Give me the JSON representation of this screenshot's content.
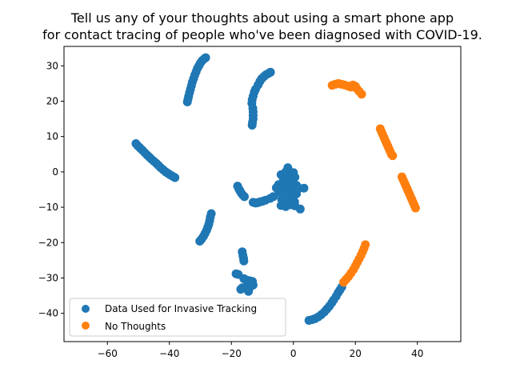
{
  "chart_data": {
    "type": "scatter",
    "title_lines": [
      "Tell us any of your thoughts about using a smart phone app",
      "for contact tracing of people who've been diagnosed with COVID-19."
    ],
    "xlabel": "",
    "ylabel": "",
    "xlim": [
      -74,
      54
    ],
    "ylim": [
      -48,
      35.5
    ],
    "x_ticks": [
      -60,
      -40,
      -20,
      0,
      20,
      40
    ],
    "y_ticks": [
      -40,
      -30,
      -20,
      -10,
      0,
      10,
      20,
      30
    ],
    "grid": false,
    "legend_position": "lower-left",
    "series": [
      {
        "name": "Data Used for Invasive Tracking",
        "color": "#1f77b4",
        "points": [
          [
            -34.2,
            19.8
          ],
          [
            -34.0,
            20.6
          ],
          [
            -33.8,
            21.4
          ],
          [
            -33.5,
            22.4
          ],
          [
            -33.2,
            23.4
          ],
          [
            -32.9,
            24.4
          ],
          [
            -32.6,
            25.4
          ],
          [
            -32.2,
            26.4
          ],
          [
            -31.8,
            27.4
          ],
          [
            -31.4,
            28.3
          ],
          [
            -31.0,
            29.2
          ],
          [
            -30.5,
            30.0
          ],
          [
            -30.0,
            30.8
          ],
          [
            -29.4,
            31.5
          ],
          [
            -28.8,
            32.0
          ],
          [
            -28.3,
            32.3
          ],
          [
            -13.3,
            13.2
          ],
          [
            -13.2,
            14.0
          ],
          [
            -13.0,
            15.0
          ],
          [
            -13.0,
            16.0
          ],
          [
            -13.0,
            17.0
          ],
          [
            -13.1,
            18.0
          ],
          [
            -13.4,
            19.4
          ],
          [
            -13.3,
            20.4
          ],
          [
            -13.0,
            21.4
          ],
          [
            -12.6,
            22.6
          ],
          [
            -12.2,
            23.4
          ],
          [
            -11.4,
            24.6
          ],
          [
            -10.8,
            25.6
          ],
          [
            -10.2,
            26.4
          ],
          [
            -9.5,
            27.0
          ],
          [
            -8.8,
            27.5
          ],
          [
            -8.0,
            27.9
          ],
          [
            -7.4,
            28.2
          ],
          [
            -50.8,
            8.0
          ],
          [
            -50.2,
            7.4
          ],
          [
            -49.5,
            6.8
          ],
          [
            -48.8,
            6.2
          ],
          [
            -48.0,
            5.5
          ],
          [
            -47.2,
            4.8
          ],
          [
            -46.5,
            4.2
          ],
          [
            -45.8,
            3.6
          ],
          [
            -45.0,
            3.0
          ],
          [
            -44.2,
            2.4
          ],
          [
            -43.5,
            1.8
          ],
          [
            -42.8,
            1.2
          ],
          [
            -42.0,
            0.6
          ],
          [
            -41.2,
            0.0
          ],
          [
            -40.5,
            -0.4
          ],
          [
            -39.8,
            -0.8
          ],
          [
            -39.0,
            -1.2
          ],
          [
            -38.2,
            -1.6
          ],
          [
            -18.0,
            -4.0
          ],
          [
            -17.6,
            -4.8
          ],
          [
            -17.2,
            -5.4
          ],
          [
            -16.8,
            -6.0
          ],
          [
            -16.3,
            -6.6
          ],
          [
            -15.8,
            -7.0
          ],
          [
            -13.0,
            -8.6
          ],
          [
            -12.2,
            -8.8
          ],
          [
            -11.5,
            -8.7
          ],
          [
            -10.8,
            -8.5
          ],
          [
            -10.0,
            -8.3
          ],
          [
            -9.0,
            -8.0
          ],
          [
            -7.5,
            -7.5
          ],
          [
            -6.5,
            -7.0
          ],
          [
            -4.0,
            -0.8
          ],
          [
            -2.5,
            0.0
          ],
          [
            -1.8,
            1.2
          ],
          [
            -1.0,
            -1.0
          ],
          [
            0.0,
            -0.2
          ],
          [
            0.5,
            -1.5
          ],
          [
            -3.2,
            -2.2
          ],
          [
            -4.8,
            -3.6
          ],
          [
            -5.5,
            -4.5
          ],
          [
            -3.5,
            -4.0
          ],
          [
            -2.0,
            -3.5
          ],
          [
            -0.5,
            -3.0
          ],
          [
            1.0,
            -3.8
          ],
          [
            1.8,
            -4.6
          ],
          [
            3.4,
            -4.6
          ],
          [
            -3.0,
            -5.2
          ],
          [
            -1.5,
            -5.5
          ],
          [
            0.5,
            -5.8
          ],
          [
            -4.5,
            -5.8
          ],
          [
            -2.0,
            -6.8
          ],
          [
            -0.2,
            -6.5
          ],
          [
            1.0,
            -6.2
          ],
          [
            -3.8,
            -7.8
          ],
          [
            -2.5,
            -8.5
          ],
          [
            -1.0,
            -8.0
          ],
          [
            0.4,
            -8.5
          ],
          [
            -4.0,
            -9.5
          ],
          [
            -2.5,
            -9.8
          ],
          [
            -1.0,
            -9.3
          ],
          [
            0.5,
            -9.6
          ],
          [
            2.2,
            -10.5
          ],
          [
            -2.8,
            -3.0
          ],
          [
            -1.2,
            -2.0
          ],
          [
            0.0,
            -4.5
          ],
          [
            -26.5,
            -11.8
          ],
          [
            -26.8,
            -12.8
          ],
          [
            -27.0,
            -13.8
          ],
          [
            -27.3,
            -14.8
          ],
          [
            -27.6,
            -15.6
          ],
          [
            -28.0,
            -16.5
          ],
          [
            -28.5,
            -17.4
          ],
          [
            -29.0,
            -18.2
          ],
          [
            -29.6,
            -19.0
          ],
          [
            -30.2,
            -19.6
          ],
          [
            -16.5,
            -22.6
          ],
          [
            -16.3,
            -23.6
          ],
          [
            -16.1,
            -24.4
          ],
          [
            -16.0,
            -25.2
          ],
          [
            -18.5,
            -28.8
          ],
          [
            -17.8,
            -29.0
          ],
          [
            -16.0,
            -30.2
          ],
          [
            -15.0,
            -30.6
          ],
          [
            -14.0,
            -30.8
          ],
          [
            -13.2,
            -31.0
          ],
          [
            -13.0,
            -32.0
          ],
          [
            -13.8,
            -32.4
          ],
          [
            -14.8,
            -31.8
          ],
          [
            -17.0,
            -33.2
          ],
          [
            -16.5,
            -32.8
          ],
          [
            -14.5,
            -33.8
          ],
          [
            5.0,
            -42.0
          ],
          [
            6.0,
            -41.8
          ],
          [
            7.0,
            -41.5
          ],
          [
            8.0,
            -41.0
          ],
          [
            9.0,
            -40.4
          ],
          [
            10.0,
            -39.6
          ],
          [
            10.8,
            -38.8
          ],
          [
            11.6,
            -38.0
          ],
          [
            12.4,
            -37.0
          ],
          [
            13.0,
            -36.2
          ],
          [
            13.8,
            -35.2
          ],
          [
            14.4,
            -34.2
          ],
          [
            15.0,
            -33.4
          ],
          [
            15.6,
            -32.6
          ]
        ]
      },
      {
        "name": "No Thoughts",
        "color": "#ff7f0e",
        "points": [
          [
            12.5,
            24.5
          ],
          [
            13.5,
            24.8
          ],
          [
            14.5,
            25.0
          ],
          [
            15.5,
            24.8
          ],
          [
            16.5,
            24.6
          ],
          [
            17.5,
            24.3
          ],
          [
            18.5,
            24.0
          ],
          [
            19.2,
            24.6
          ],
          [
            20.0,
            24.2
          ],
          [
            20.5,
            23.5
          ],
          [
            21.2,
            22.8
          ],
          [
            22.0,
            22.0
          ],
          [
            28.0,
            12.2
          ],
          [
            28.4,
            11.4
          ],
          [
            28.8,
            10.6
          ],
          [
            29.2,
            9.8
          ],
          [
            29.6,
            9.0
          ],
          [
            30.0,
            8.2
          ],
          [
            30.4,
            7.4
          ],
          [
            30.8,
            6.6
          ],
          [
            31.2,
            5.8
          ],
          [
            31.6,
            5.0
          ],
          [
            32.0,
            4.6
          ],
          [
            35.0,
            -1.4
          ],
          [
            35.4,
            -2.2
          ],
          [
            35.8,
            -3.0
          ],
          [
            36.2,
            -3.8
          ],
          [
            36.6,
            -4.6
          ],
          [
            37.0,
            -5.4
          ],
          [
            37.4,
            -6.2
          ],
          [
            37.8,
            -7.0
          ],
          [
            38.2,
            -7.8
          ],
          [
            38.6,
            -8.6
          ],
          [
            39.0,
            -9.4
          ],
          [
            39.4,
            -10.2
          ],
          [
            16.2,
            -31.2
          ],
          [
            17.0,
            -30.4
          ],
          [
            17.8,
            -29.6
          ],
          [
            18.6,
            -28.6
          ],
          [
            19.4,
            -27.6
          ],
          [
            20.0,
            -26.6
          ],
          [
            20.6,
            -25.6
          ],
          [
            21.2,
            -24.6
          ],
          [
            21.8,
            -23.6
          ],
          [
            22.3,
            -22.6
          ],
          [
            22.8,
            -21.6
          ],
          [
            23.2,
            -20.6
          ]
        ]
      }
    ]
  }
}
